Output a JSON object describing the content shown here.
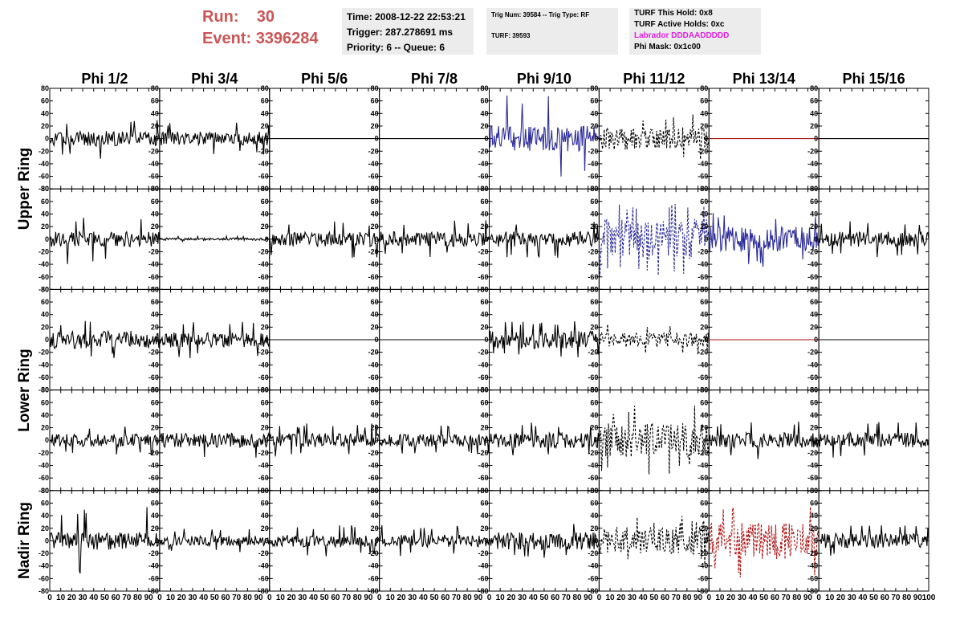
{
  "header": {
    "run_label": "Run:",
    "run_value": "30",
    "event_label": "Event:",
    "event_value": "3396284"
  },
  "time_box": {
    "time": "Time: 2008-12-22 22:53:21",
    "trigger": "Trigger: 287.278691 ms",
    "priority": "Priority: 6 -- Queue: 6"
  },
  "trig_box": {
    "line1": "Trig Num: 39584 -- Trig Type: RF",
    "line2": "TURF: 39593"
  },
  "turf_box": {
    "this_hold": "TURF This Hold: 0x8",
    "active_holds": "TURF Active Holds: 0xc",
    "labrador": "Labrador DDDAADDDDD",
    "phi_mask": "Phi Mask: 0x1c00"
  },
  "colors": {
    "header_red": "#cc5555",
    "magenta": "#e020e0",
    "blue": "#2a2a99",
    "red": "#aa1111",
    "black": "#000000"
  },
  "chart_data": {
    "type": "line",
    "columns": [
      "Phi 1/2",
      "Phi 3/4",
      "Phi 5/6",
      "Phi 7/8",
      "Phi 9/10",
      "Phi 11/12",
      "Phi 13/14",
      "Phi 15/16"
    ],
    "ring_labels": [
      {
        "text": "Upper Ring",
        "rows": [
          0,
          1
        ]
      },
      {
        "text": "Lower Ring",
        "rows": [
          2,
          3
        ]
      },
      {
        "text": "Nadir Ring",
        "rows": [
          4
        ]
      }
    ],
    "xlim": [
      0,
      100
    ],
    "ylim": [
      -80,
      80
    ],
    "xticks": [
      0,
      10,
      20,
      30,
      40,
      50,
      60,
      70,
      80,
      90,
      100
    ],
    "yticks": [
      -80,
      -60,
      -40,
      -20,
      0,
      20,
      40,
      60,
      80
    ],
    "panels": [
      [
        {
          "style": "solid",
          "color": "black",
          "amp": 12,
          "peak": 33
        },
        {
          "style": "solid",
          "color": "black",
          "amp": 11,
          "peak": 28
        },
        {
          "style": "flat",
          "color": "black",
          "amp": 0,
          "peak": 0
        },
        {
          "style": "flat",
          "color": "black",
          "amp": 0,
          "peak": 0
        },
        {
          "style": "solid",
          "color": "blue",
          "amp": 20,
          "peak": 70
        },
        {
          "style": "dashed",
          "color": "black",
          "amp": 18,
          "peak": 40
        },
        {
          "style": "flat",
          "color": "red",
          "amp": 0,
          "peak": 0
        },
        {
          "style": "flat",
          "color": "black",
          "amp": 0,
          "peak": 0
        }
      ],
      [
        {
          "style": "solid",
          "color": "black",
          "amp": 12,
          "peak": 40
        },
        {
          "style": "solid",
          "color": "black",
          "amp": 2,
          "peak": 5
        },
        {
          "style": "solid",
          "color": "black",
          "amp": 12,
          "peak": 30
        },
        {
          "style": "solid",
          "color": "black",
          "amp": 12,
          "peak": 30
        },
        {
          "style": "solid",
          "color": "black",
          "amp": 12,
          "peak": 30
        },
        {
          "style": "dashed",
          "color": "blue",
          "amp": 32,
          "peak": 60
        },
        {
          "style": "solid",
          "color": "blue",
          "amp": 20,
          "peak": 45
        },
        {
          "style": "solid",
          "color": "black",
          "amp": 12,
          "peak": 30
        }
      ],
      [
        {
          "style": "solid",
          "color": "black",
          "amp": 14,
          "peak": 30
        },
        {
          "style": "solid",
          "color": "black",
          "amp": 12,
          "peak": 30
        },
        {
          "style": "flat",
          "color": "black",
          "amp": 0,
          "peak": 0
        },
        {
          "style": "flat",
          "color": "black",
          "amp": 0,
          "peak": 0
        },
        {
          "style": "solid",
          "color": "black",
          "amp": 14,
          "peak": 30
        },
        {
          "style": "dashed",
          "color": "black",
          "amp": 12,
          "peak": 25
        },
        {
          "style": "flat",
          "color": "red",
          "amp": 0,
          "peak": 0
        },
        {
          "style": "flat",
          "color": "black",
          "amp": 0,
          "peak": 0
        }
      ],
      [
        {
          "style": "solid",
          "color": "black",
          "amp": 10,
          "peak": 25
        },
        {
          "style": "solid",
          "color": "black",
          "amp": 12,
          "peak": 28
        },
        {
          "style": "solid",
          "color": "black",
          "amp": 11,
          "peak": 28
        },
        {
          "style": "solid",
          "color": "black",
          "amp": 10,
          "peak": 25
        },
        {
          "style": "solid",
          "color": "black",
          "amp": 12,
          "peak": 30
        },
        {
          "style": "dashed",
          "color": "black",
          "amp": 28,
          "peak": 55
        },
        {
          "style": "solid",
          "color": "black",
          "amp": 12,
          "peak": 30
        },
        {
          "style": "solid",
          "color": "black",
          "amp": 12,
          "peak": 30
        }
      ],
      [
        {
          "style": "solid",
          "color": "black",
          "amp": 14,
          "peak": 55
        },
        {
          "style": "solid",
          "color": "black",
          "amp": 8,
          "peak": 20
        },
        {
          "style": "solid",
          "color": "black",
          "amp": 10,
          "peak": 25
        },
        {
          "style": "solid",
          "color": "black",
          "amp": 10,
          "peak": 25
        },
        {
          "style": "solid",
          "color": "black",
          "amp": 14,
          "peak": 30
        },
        {
          "style": "dashed",
          "color": "black",
          "amp": 22,
          "peak": 40
        },
        {
          "style": "dashed",
          "color": "red",
          "amp": 30,
          "peak": 60
        },
        {
          "style": "solid",
          "color": "black",
          "amp": 12,
          "peak": 25
        }
      ]
    ]
  }
}
